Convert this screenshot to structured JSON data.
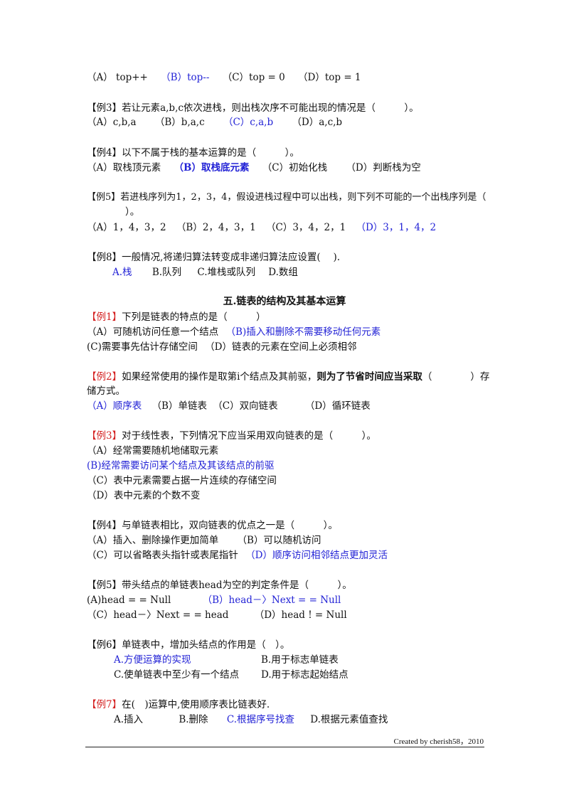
{
  "q_top": {
    "a": "（A） top++",
    "b": "（B）top--",
    "c": "（C）top = 0",
    "d": "（D）top = 1"
  },
  "ex3a": {
    "tag": "【例3】",
    "text": "若让元素a,b,c依次进栈，则出栈次序不可能出现的情况是（　　　）。",
    "a": "（A）c,b,a",
    "b": "（B）b,a,c",
    "c": "（C）c,a,b",
    "d": "（D）a,c,b"
  },
  "ex4a": {
    "tag": "【例4】",
    "text": "以下不属于栈的基本运算的是（　　　）。",
    "a": "（A）取栈顶元素",
    "b": "（B）取栈底元素",
    "c": "（C）初始化栈",
    "d": "（D）判断栈为空"
  },
  "ex5a": {
    "tag": "【例5】",
    "text": "若进栈序列为1，2，3，4，假设进栈过程中可以出栈，则下列不可能的一个出栈序列是（",
    "text2": "）。",
    "a": "（A）1，4，3，2",
    "b": "（B）2，4，3，1",
    "c": "（C）3，4，2，1",
    "d": "（D）3，1，4，2"
  },
  "ex8": {
    "tag": "【例8】",
    "text": "一般情况,将递归算法转变成非递归算法应设置(　 ).",
    "a": "A.栈",
    "b": "B.队列",
    "c": "C.堆栈或队列",
    "d": "D.数组"
  },
  "section_title": "五.链表的结构及其基本运算",
  "ex1": {
    "tag": "【例1】",
    "text": "下列是链表的特点的是（　　　）",
    "a": "（A）可随机访问任意一个结点",
    "b": "（B)插入和删除不需要移动任何元素",
    "c": "(C)需要事先估计存储空间",
    "d": "（D）链表的元素在空间上必须相邻"
  },
  "ex2": {
    "tag": "【例2】",
    "text": "如果经常使用的操作是取第i个结点及其前驱，",
    "text_bold": "则为了节省时间应当采取",
    "text_end": "（　　　　）存",
    "text2": "储方式。",
    "a": "（A）顺序表",
    "b": "（B）单链表",
    "c": "（C）双向链表",
    "d": "（D）循环链表"
  },
  "ex3b": {
    "tag": "【例3】",
    "text": "对于线性表，下列情况下应当采用双向链表的是（　　　）。",
    "a": "（A）经常需要随机地储取元素",
    "b": "(B)经常需要访问某个结点及其该结点的前驱",
    "c": "（C）表中元素需要占据一片连续的存储空间",
    "d": "（D）表中元素的个数不变"
  },
  "ex4b": {
    "tag": "【例4】",
    "text": "与单链表相比，双向链表的优点之一是（　　　）。",
    "a": "（A）插入、删除操作更加简单",
    "b": "（B）可以随机访问",
    "c": "（C）可以省略表头指针或表尾指针",
    "d": "（D）顺序访问相邻结点更加灵活"
  },
  "ex5b": {
    "tag": "【例5】",
    "text": "带头结点的单链表head为空的判定条件是（　　　）。",
    "a": "(A)head = = Null",
    "b": "（B）head－〉Next = = Null",
    "c": "（C）head－〉Next = = head",
    "d": "（D）head ! = Null"
  },
  "ex6": {
    "tag": "【例6】",
    "text": "单链表中，增加头结点的作用是（　）。",
    "a": "A.方便运算的实现",
    "b": "B.用于标志单链表",
    "c": "C.使单链表中至少有一个结点",
    "d": "D.用于标志起始结点"
  },
  "ex7": {
    "tag": "【例7】",
    "text": "在(　)运算中,使用顺序表比链表好.",
    "a": "A.插入",
    "b": "B.删除",
    "c": "C.根据序号找查",
    "d": "D.根据元素值查找"
  },
  "footer": "Created by cherish58，2010"
}
